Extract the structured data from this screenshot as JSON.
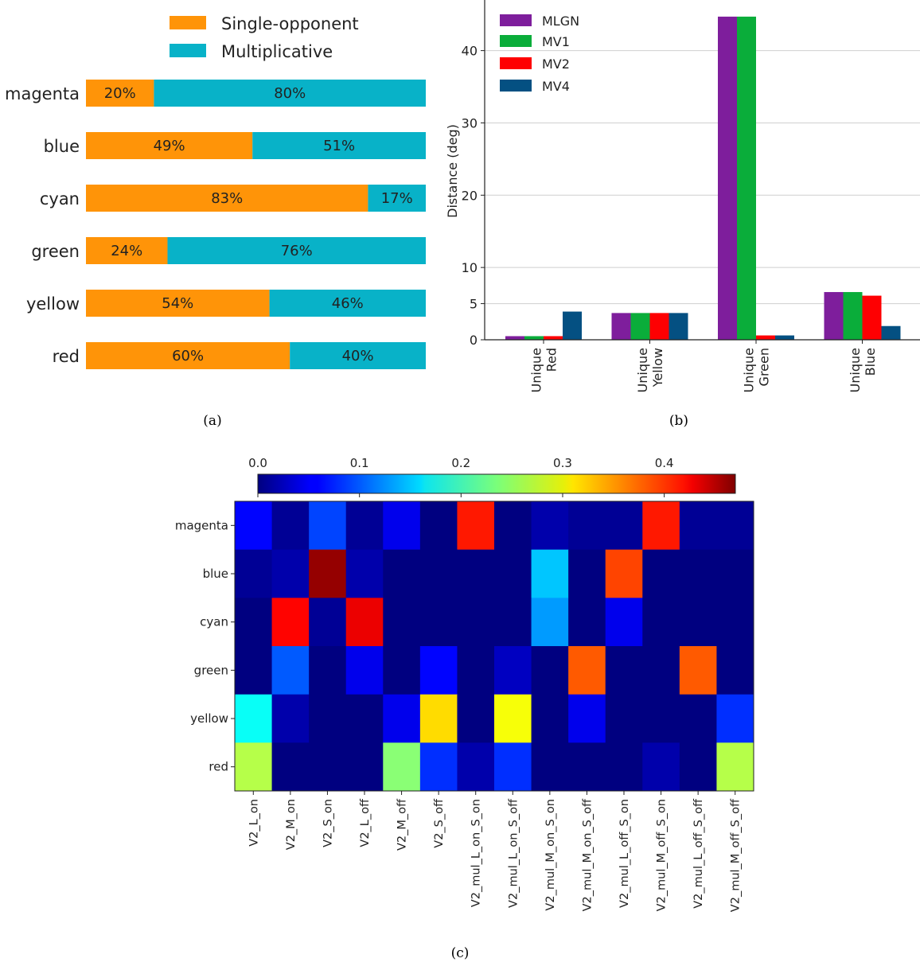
{
  "chart_data": [
    {
      "panel": "a",
      "caption": "(a)",
      "type": "bar",
      "orientation": "horizontal",
      "stacked": true,
      "categories": [
        "magenta",
        "blue",
        "cyan",
        "green",
        "yellow",
        "red"
      ],
      "series": [
        {
          "name": "Single-opponent",
          "color": "#ff9408",
          "values": [
            20,
            49,
            83,
            24,
            54,
            60
          ]
        },
        {
          "name": "Multiplicative",
          "color": "#08b2c8",
          "values": [
            80,
            51,
            17,
            76,
            46,
            40
          ]
        }
      ],
      "value_labels": [
        [
          "20%",
          "80%"
        ],
        [
          "49%",
          "51%"
        ],
        [
          "83%",
          "17%"
        ],
        [
          "24%",
          "76%"
        ],
        [
          "54%",
          "46%"
        ],
        [
          "60%",
          "40%"
        ]
      ],
      "xlim": [
        0,
        100
      ],
      "legend": "top",
      "grid": false
    },
    {
      "panel": "b",
      "caption": "(b)",
      "type": "bar",
      "categories": [
        "Unique Red",
        "Unique Yellow",
        "Unique Green",
        "Unique Blue"
      ],
      "category_lines": [
        [
          "Unique",
          "Red"
        ],
        [
          "Unique",
          "Yellow"
        ],
        [
          "Unique",
          "Green"
        ],
        [
          "Unique",
          "Blue"
        ]
      ],
      "series": [
        {
          "name": "MLGN",
          "color": "#7e1e9c",
          "values": [
            0.5,
            3.7,
            44.7,
            6.6
          ]
        },
        {
          "name": "MV1",
          "color": "#0aad3a",
          "values": [
            0.5,
            3.7,
            44.7,
            6.6
          ]
        },
        {
          "name": "MV2",
          "color": "#fe0002",
          "values": [
            0.5,
            3.7,
            0.6,
            6.1
          ]
        },
        {
          "name": "MV4",
          "color": "#045082",
          "values": [
            3.9,
            3.7,
            0.6,
            1.9
          ]
        }
      ],
      "ylabel": "Distance (deg)",
      "yticks": [
        0,
        5,
        10,
        20,
        30,
        40
      ],
      "ylim": [
        0,
        47
      ],
      "legend": "top-left",
      "grid": true
    },
    {
      "panel": "c",
      "caption": "(c)",
      "type": "heatmap",
      "rows": [
        "magenta",
        "blue",
        "cyan",
        "green",
        "yellow",
        "red"
      ],
      "columns": [
        "V2_L_on",
        "V2_M_on",
        "V2_S_on",
        "V2_L_off",
        "V2_M_off",
        "V2_S_off",
        "V2_mul_L_on_S_on",
        "V2_mul_L_on_S_off",
        "V2_mul_M_on_S_on",
        "V2_mul_M_on_S_off",
        "V2_mul_L_off_S_on",
        "V2_mul_M_off_S_on",
        "V2_mul_L_off_S_off",
        "V2_mul_M_off_S_off"
      ],
      "values": [
        [
          0.06,
          0.01,
          0.09,
          0.01,
          0.05,
          0.0,
          0.4,
          0.0,
          0.02,
          0.01,
          0.01,
          0.4,
          0.01,
          0.01
        ],
        [
          0.01,
          0.02,
          0.46,
          0.02,
          0.0,
          0.0,
          0.0,
          0.0,
          0.15,
          0.0,
          0.38,
          0.0,
          0.0,
          0.0
        ],
        [
          0.0,
          0.41,
          0.01,
          0.42,
          0.0,
          0.0,
          0.0,
          0.0,
          0.13,
          0.0,
          0.05,
          0.0,
          0.0,
          0.0
        ],
        [
          0.0,
          0.1,
          0.0,
          0.05,
          0.0,
          0.06,
          0.0,
          0.03,
          0.0,
          0.37,
          0.0,
          0.0,
          0.37,
          0.0
        ],
        [
          0.18,
          0.02,
          0.0,
          0.0,
          0.05,
          0.31,
          0.0,
          0.29,
          0.0,
          0.05,
          0.0,
          0.0,
          0.0,
          0.08
        ],
        [
          0.26,
          0.0,
          0.0,
          0.0,
          0.24,
          0.08,
          0.02,
          0.08,
          0.0,
          0.0,
          0.0,
          0.02,
          0.0,
          0.26
        ]
      ],
      "colormap": "jet",
      "vmin": 0.0,
      "vmax": 0.47,
      "colorbar_ticks": [
        "0.0",
        "0.1",
        "0.2",
        "0.3",
        "0.4"
      ],
      "colorbar_tick_values": [
        0.0,
        0.1,
        0.2,
        0.3,
        0.4
      ],
      "colorbar": "top"
    }
  ]
}
